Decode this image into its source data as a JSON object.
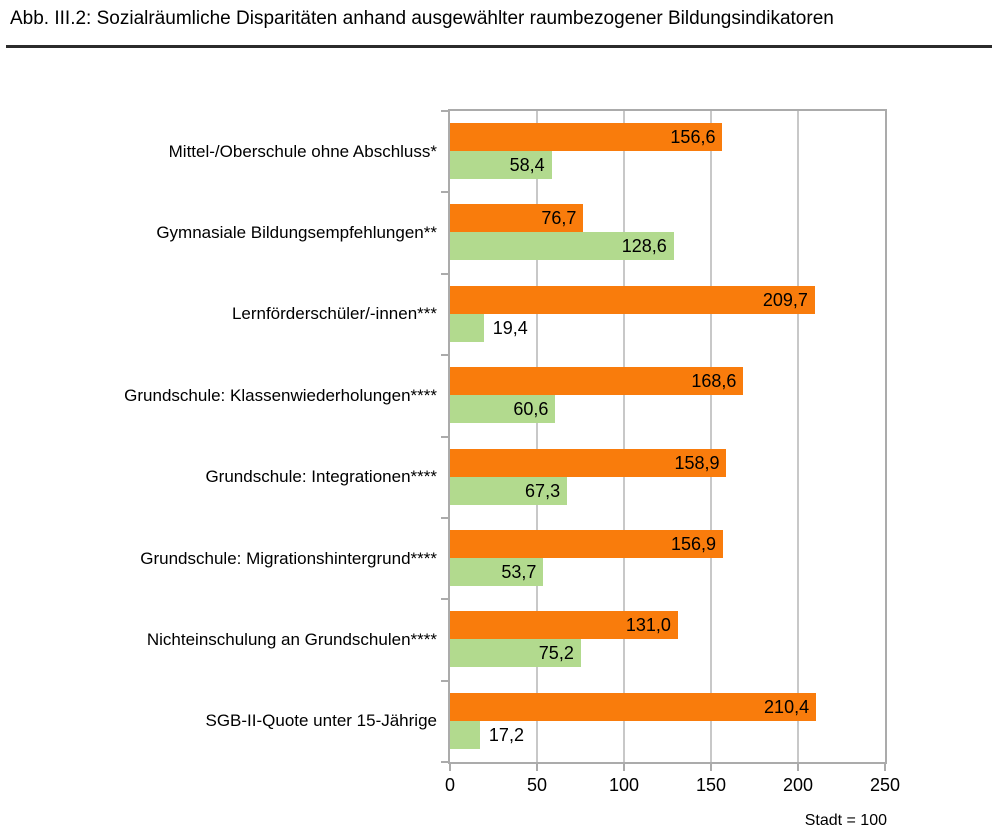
{
  "figure": {
    "title": "Abb. III.2: Sozialräumliche Disparitäten anhand ausgewählter raumbezogener Bildungsindikatoren",
    "footnote": "Stadt = 100"
  },
  "colors": {
    "orange_series": "#F97C0C",
    "green_series": "#B2DA8E",
    "gridline": "#C8C8C8",
    "axis": "#ABABAB",
    "title_rule": "#2B2B2B",
    "text": "#000000"
  },
  "chart_data": {
    "type": "bar",
    "orientation": "horizontal",
    "title": "Abb. III.2: Sozialräumliche Disparitäten anhand ausgewählter raumbezogener Bildungsindikatoren",
    "xlabel": "",
    "ylabel": "",
    "xlim": [
      0,
      250
    ],
    "xticks": [
      0,
      50,
      100,
      150,
      200,
      250
    ],
    "grid": true,
    "legend": false,
    "reference_note": "Stadt = 100",
    "categories": [
      "Mittel-/Oberschule ohne Abschluss*",
      "Gymnasiale Bildungsempfehlungen**",
      "Lernförderschüler/-innen***",
      "Grundschule: Klassenwiederholungen****",
      "Grundschule: Integrationen****",
      "Grundschule: Migrationshintergrund****",
      "Nichteinschulung an Grundschulen****",
      "SGB-II-Quote unter 15-Jährige"
    ],
    "series": [
      {
        "id": "orange",
        "color": "#F97C0C",
        "values": [
          156.6,
          76.7,
          209.7,
          168.6,
          158.9,
          156.9,
          131.0,
          210.4
        ],
        "labels": [
          "156,6",
          "76,7",
          "209,7",
          "168,6",
          "158,9",
          "156,9",
          "131,0",
          "210,4"
        ]
      },
      {
        "id": "green",
        "color": "#B2DA8E",
        "values": [
          58.4,
          128.6,
          19.4,
          60.6,
          67.3,
          53.7,
          75.2,
          17.2
        ],
        "labels": [
          "58,4",
          "128,6",
          "19,4",
          "60,6",
          "67,3",
          "53,7",
          "75,2",
          "17,2"
        ]
      }
    ]
  }
}
